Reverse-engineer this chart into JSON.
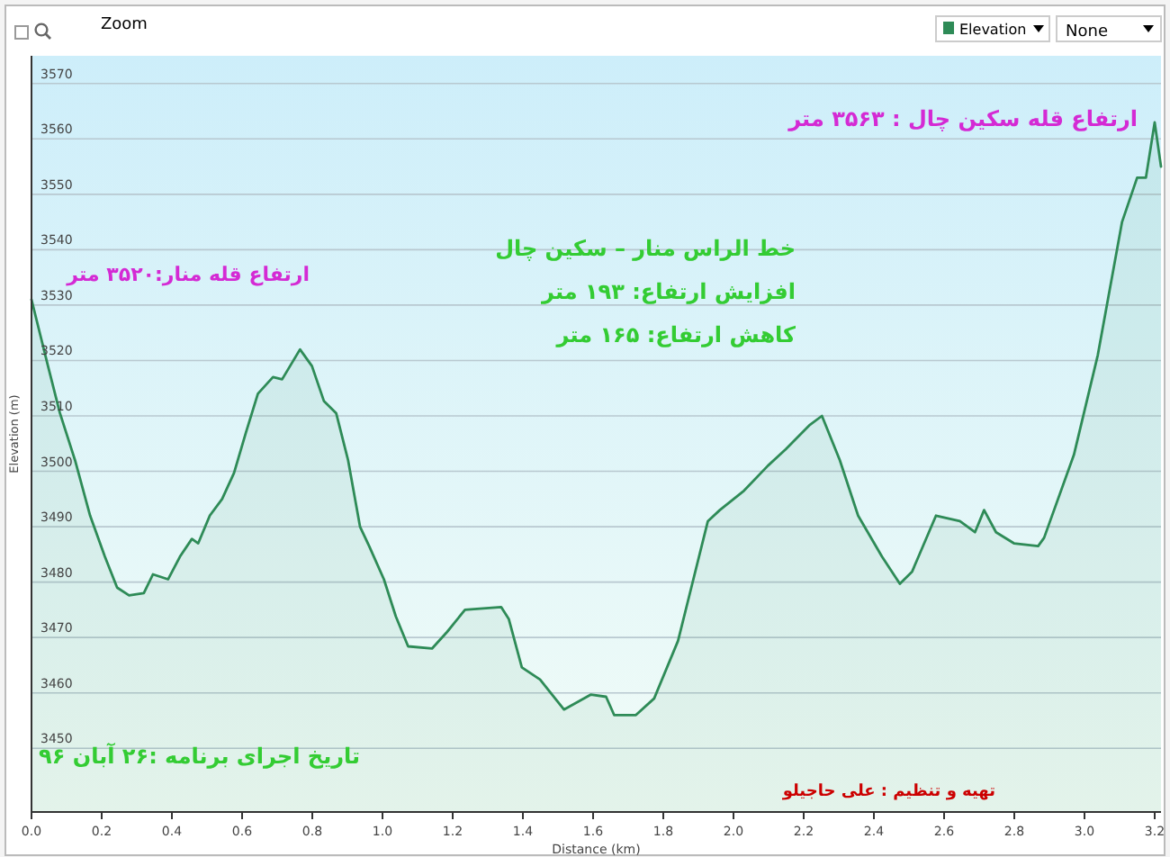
{
  "chart_data": {
    "type": "area",
    "xlabel": "Distance (km)",
    "ylabel": "Elevation (m)",
    "x": [
      0,
      0.047,
      0.081,
      0.124,
      0.167,
      0.209,
      0.244,
      0.278,
      0.32,
      0.346,
      0.389,
      0.423,
      0.457,
      0.475,
      0.508,
      0.543,
      0.577,
      0.611,
      0.645,
      0.688,
      0.714,
      0.765,
      0.799,
      0.833,
      0.868,
      0.902,
      0.936,
      0.962,
      1.004,
      1.038,
      1.073,
      1.141,
      1.184,
      1.235,
      1.338,
      1.36,
      1.397,
      1.449,
      1.517,
      1.594,
      1.637,
      1.66,
      1.722,
      1.774,
      1.842,
      1.927,
      1.961,
      2.03,
      2.098,
      2.149,
      2.218,
      2.252,
      2.303,
      2.355,
      2.423,
      2.474,
      2.509,
      2.577,
      2.645,
      2.688,
      2.714,
      2.748,
      2.799,
      2.868,
      2.885,
      2.97,
      3.038,
      3.107,
      3.15,
      3.175,
      3.2,
      3.218
    ],
    "series": [
      {
        "name": "Elevation",
        "color": "#2e8b57",
        "values": [
          3531,
          3519,
          3510.5,
          3502,
          3492,
          3484.6,
          3479,
          3477.6,
          3478,
          3481.4,
          3480.5,
          3484.6,
          3487.8,
          3487,
          3492,
          3495,
          3499.7,
          3507,
          3514,
          3517,
          3516.6,
          3522,
          3519,
          3512.7,
          3510.5,
          3502,
          3490,
          3486.5,
          3480.5,
          3473.8,
          3468.4,
          3468,
          3471,
          3475,
          3475.5,
          3473.3,
          3464.6,
          3462.4,
          3457,
          3459.7,
          3459.3,
          3456,
          3456,
          3459,
          3469.4,
          3491,
          3493,
          3496.5,
          3501,
          3504,
          3508.4,
          3510,
          3502,
          3492,
          3484.6,
          3479.7,
          3481.9,
          3492,
          3491,
          3489,
          3493,
          3489,
          3487,
          3486.5,
          3488,
          3503,
          3521,
          3545,
          3553,
          3553,
          3563,
          3555
        ]
      }
    ],
    "xlim": [
      0,
      3.218
    ],
    "ylim": [
      3438.5,
      3575
    ],
    "xticks": [
      {
        "value": 0,
        "label": "0.0"
      },
      {
        "value": 0.2,
        "label": "0.2"
      },
      {
        "value": 0.4,
        "label": "0.4"
      },
      {
        "value": 0.6,
        "label": "0.6"
      },
      {
        "value": 0.8,
        "label": "0.8"
      },
      {
        "value": 1,
        "label": "1.0"
      },
      {
        "value": 1.2,
        "label": "1.2"
      },
      {
        "value": 1.4,
        "label": "1.4"
      },
      {
        "value": 1.6,
        "label": "1.6"
      },
      {
        "value": 1.8,
        "label": "1.8"
      },
      {
        "value": 2,
        "label": "2.0"
      },
      {
        "value": 2.2,
        "label": "2.2"
      },
      {
        "value": 2.4,
        "label": "2.4"
      },
      {
        "value": 2.6,
        "label": "2.6"
      },
      {
        "value": 2.8,
        "label": "2.8"
      },
      {
        "value": 3,
        "label": "3.0"
      },
      {
        "value": 3.2,
        "label": "3.2"
      }
    ],
    "yticks": [
      3450,
      3460,
      3470,
      3480,
      3490,
      3500,
      3510,
      3520,
      3530,
      3540,
      3550,
      3560,
      3570
    ],
    "grid": "y",
    "legend": "top right",
    "annotations": [
      "Zoom",
      "None",
      "ارتفاع قله سکین چال : ۳۵۶۳ متر",
      "ارتفاع قله منار:۳۵۲۰ متر",
      "خط الراس منار – سکین چال",
      "افزایش ارتفاع: ۱۹۳ متر",
      "کاهش ارتفاع: ۱۶۵ متر",
      "تاریخ اجرای برنامه :۲۶ آبان ۹۶",
      "تهیه و تنظیم : علی حاجیلو"
    ]
  }
}
